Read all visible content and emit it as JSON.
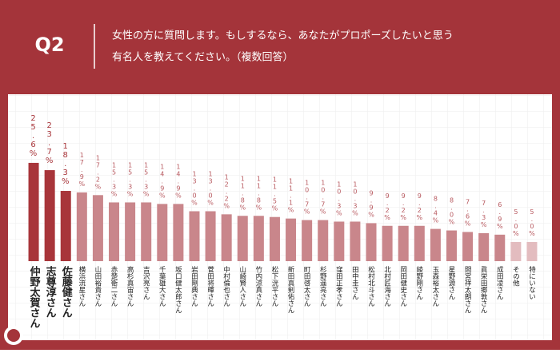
{
  "header": {
    "label": "Q2",
    "question": [
      "女性の方に質問します。もしするなら、あなたがプロポーズしたいと思う",
      "有名人を教えてください。（複数回答）"
    ]
  },
  "chart_data": {
    "type": "bar",
    "categories": [
      "仲野太賀さん",
      "志尊淳さん",
      "佐藤健さん",
      "横浜流星さん",
      "山田裕貴さん",
      "赤楚衛二さん",
      "高杉真宙さん",
      "吉沢亮さん",
      "千葉雄大さん",
      "坂口健太郎さん",
      "岩田剛典さん",
      "菅田将暉さん",
      "中村倫也さん",
      "山崎賢人さん",
      "竹内涼真さん",
      "松下洸平さん",
      "新田真剣佑さん",
      "町田啓太さん",
      "杉野遥亮さん",
      "窪田正孝さん",
      "田中圭さん",
      "松村北斗さん",
      "北村匠海さん",
      "岡田健史さん",
      "綾野剛さん",
      "玉森裕太さん",
      "星野源さん",
      "間宮祥太朗さん",
      "眞栄田郷敦さん",
      "成田凌さん",
      "その他",
      "特にいない"
    ],
    "values": [
      25.6,
      23.7,
      18.3,
      17.9,
      17.2,
      15.3,
      15.3,
      15.3,
      14.9,
      14.9,
      13.0,
      13.0,
      12.2,
      11.8,
      11.8,
      11.5,
      11.1,
      10.7,
      10.7,
      10.3,
      10.3,
      9.9,
      9.2,
      9.2,
      9.2,
      8.4,
      8.0,
      7.6,
      7.3,
      6.9,
      5.0,
      5.0
    ],
    "value_labels": [
      "25.6%",
      "23.7%",
      "18.3%",
      "17.9%",
      "17.2%",
      "15.3%",
      "15.3%",
      "15.3%",
      "14.9%",
      "14.9%",
      "13.0%",
      "13.0%",
      "12.2%",
      "11.8%",
      "11.8%",
      "11.5%",
      "11.1%",
      "10.7%",
      "10.7%",
      "10.3%",
      "10.3%",
      "9.9%",
      "9.2%",
      "9.2%",
      "9.2%",
      "8.4%",
      "8.0%",
      "7.6%",
      "7.3%",
      "6.9%",
      "5.0%",
      "5.0%"
    ],
    "colors": [
      "#a8353a",
      "#a8353a",
      "#a8353a",
      "#c9868b",
      "#c9868b",
      "#c9868b",
      "#c9868b",
      "#c9868b",
      "#c9868b",
      "#c9868b",
      "#c9868b",
      "#c9868b",
      "#c9868b",
      "#c9868b",
      "#c9868b",
      "#c9868b",
      "#c9868b",
      "#c9868b",
      "#c9868b",
      "#c9868b",
      "#c9868b",
      "#c9868b",
      "#c9868b",
      "#c9868b",
      "#c9868b",
      "#c9868b",
      "#c9868b",
      "#c9868b",
      "#c9868b",
      "#c9868b",
      "#e3bcbf",
      "#e3bcbf"
    ],
    "ylim": [
      0,
      26
    ]
  }
}
